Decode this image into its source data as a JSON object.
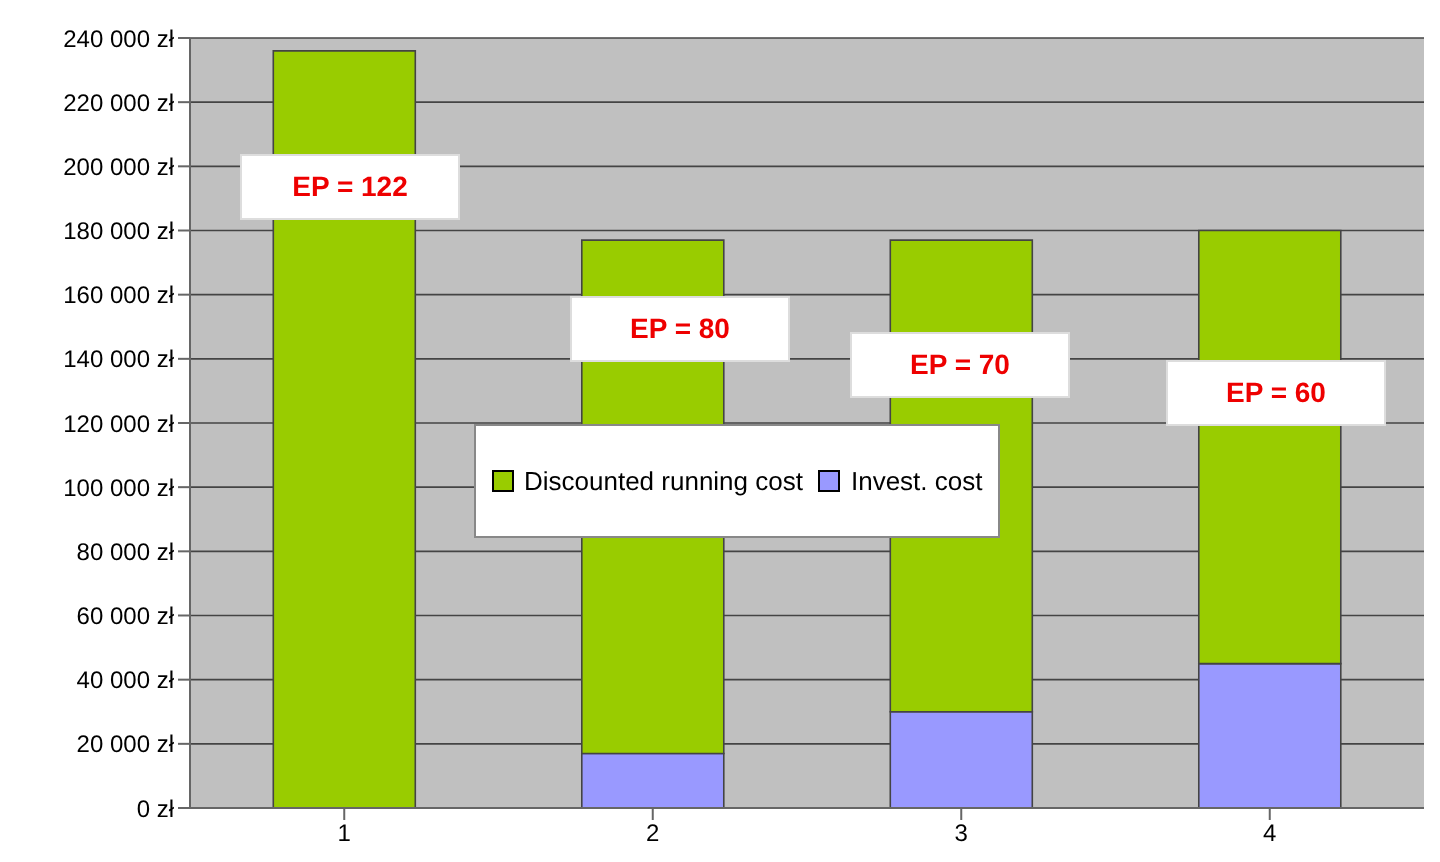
{
  "chart_data": {
    "type": "bar",
    "stacked": true,
    "categories": [
      "1",
      "2",
      "3",
      "4"
    ],
    "series": [
      {
        "name": "Invest. cost",
        "color": "#9999ff",
        "values": [
          0,
          17000,
          30000,
          45000
        ]
      },
      {
        "name": "Discounted running cost",
        "color": "#99cc00",
        "values": [
          236000,
          160000,
          147000,
          135000
        ]
      }
    ],
    "ylim": [
      0,
      240000
    ],
    "yticks": [
      {
        "value": 0,
        "label": "0 zł"
      },
      {
        "value": 20000,
        "label": "20 000 zł"
      },
      {
        "value": 40000,
        "label": "40 000 zł"
      },
      {
        "value": 60000,
        "label": "60 000 zł"
      },
      {
        "value": 80000,
        "label": "80 000 zł"
      },
      {
        "value": 100000,
        "label": "100 000 zł"
      },
      {
        "value": 120000,
        "label": "120 000 zł"
      },
      {
        "value": 140000,
        "label": "140 000 zł"
      },
      {
        "value": 160000,
        "label": "160 000 zł"
      },
      {
        "value": 180000,
        "label": "180 000 zł"
      },
      {
        "value": 200000,
        "label": "200 000 zł"
      },
      {
        "value": 220000,
        "label": "220 000 zł"
      },
      {
        "value": 240000,
        "label": "240 000 zł"
      }
    ],
    "grid": "y",
    "legend": "center",
    "annotations": [
      "EP = 122",
      "EP = 80",
      "EP = 70",
      "EP = 60"
    ]
  }
}
